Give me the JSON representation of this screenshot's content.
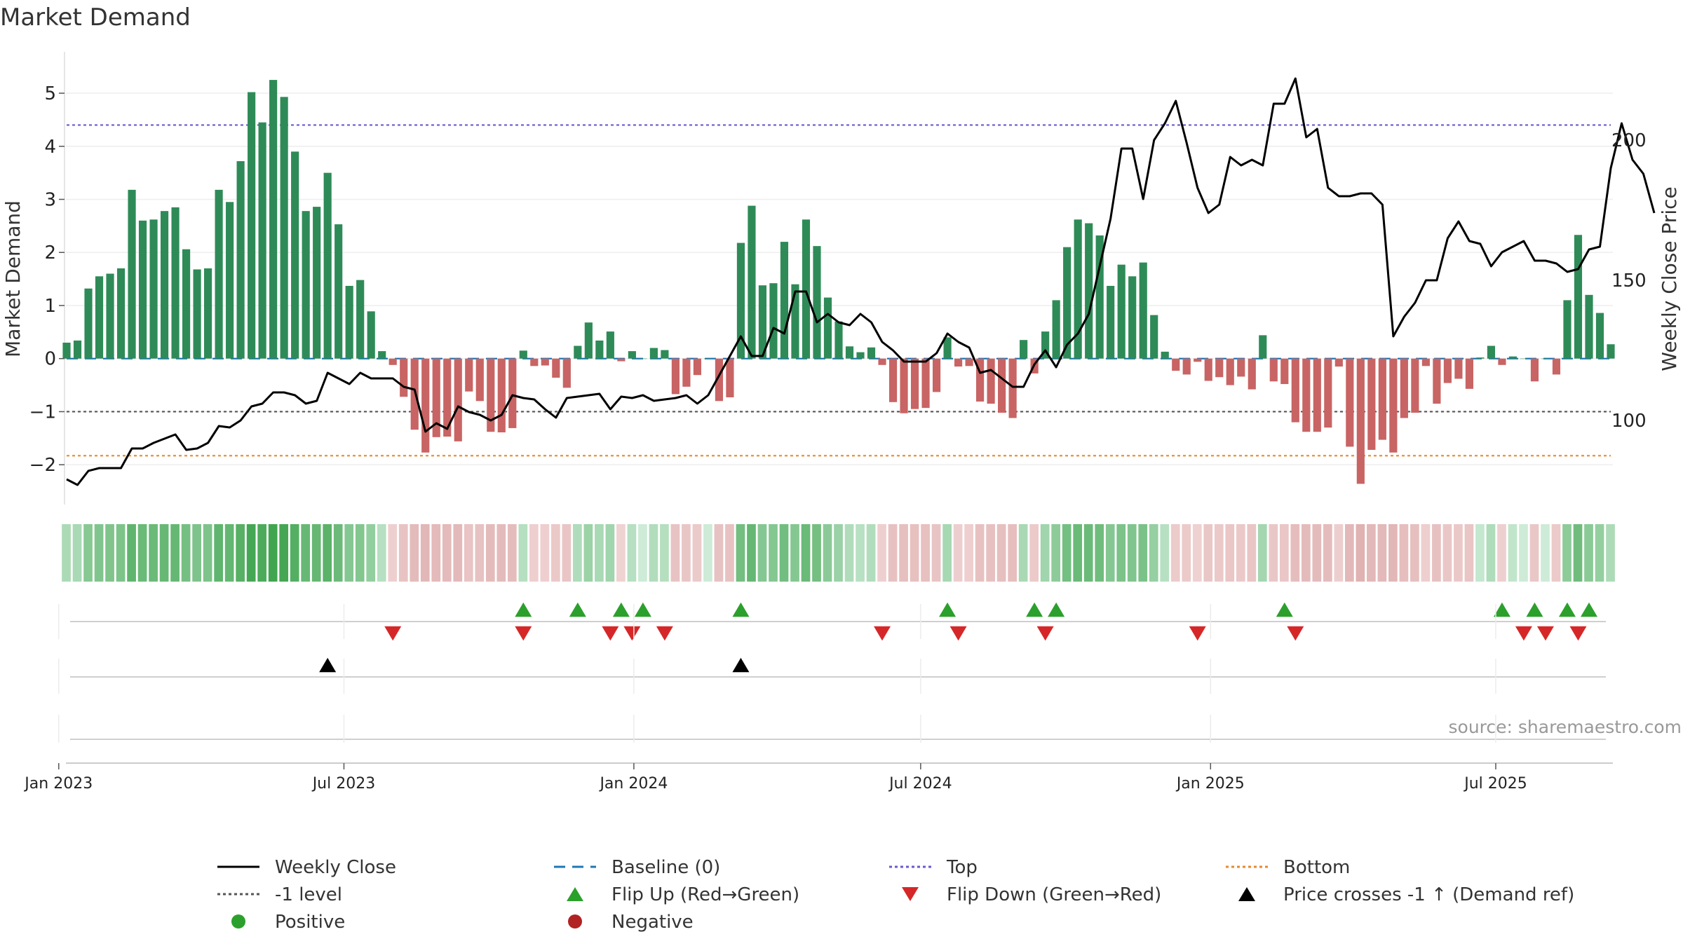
{
  "chart_data": {
    "type": "bar",
    "title": "Market Demand",
    "ylabel": "Market Demand",
    "y2label": "Weekly Close Price",
    "ylim": [
      -2.75,
      5.7
    ],
    "y2lim": [
      70,
      230
    ],
    "yticks": [
      -2,
      -1,
      0,
      1,
      2,
      3,
      4,
      5
    ],
    "y2ticks": [
      100,
      150,
      200
    ],
    "x_start": "2023-01-06",
    "x_end": "2025-09-12",
    "x_ticks": [
      {
        "date": "2023-01-01",
        "label": "Jan 2023"
      },
      {
        "date": "2023-07-01",
        "label": "Jul 2023"
      },
      {
        "date": "2024-01-01",
        "label": "Jan 2024"
      },
      {
        "date": "2024-07-01",
        "label": "Jul 2024"
      },
      {
        "date": "2025-01-01",
        "label": "Jan 2025"
      },
      {
        "date": "2025-07-01",
        "label": "Jul 2025"
      }
    ],
    "reference_lines": {
      "top": 4.4,
      "bottom": -1.83,
      "minus_one": -1,
      "baseline": 0
    },
    "demand": [
      0.3,
      0.34,
      1.32,
      1.55,
      1.6,
      1.7,
      3.18,
      2.6,
      2.62,
      2.78,
      2.85,
      2.06,
      1.68,
      1.7,
      3.18,
      2.95,
      3.72,
      5.02,
      4.45,
      5.25,
      4.93,
      3.9,
      2.78,
      2.86,
      3.5,
      2.53,
      1.37,
      1.48,
      0.89,
      0.14,
      -0.12,
      -0.72,
      -1.34,
      -1.77,
      -1.48,
      -1.47,
      -1.56,
      -0.62,
      -0.8,
      -1.38,
      -1.39,
      -1.31,
      0.15,
      -0.14,
      -0.13,
      -0.36,
      -0.55,
      0.24,
      0.68,
      0.34,
      0.51,
      -0.05,
      0.14,
      0.0,
      0.2,
      0.16,
      -0.67,
      -0.53,
      -0.31,
      0.0,
      -0.8,
      -0.73,
      2.18,
      2.88,
      1.38,
      1.42,
      2.2,
      1.4,
      2.62,
      2.12,
      1.15,
      0.7,
      0.23,
      0.12,
      0.21,
      -0.12,
      -0.82,
      -1.03,
      -0.95,
      -0.93,
      -0.63,
      0.4,
      -0.15,
      -0.14,
      -0.81,
      -0.85,
      -1.02,
      -1.12,
      0.35,
      -0.28,
      0.51,
      1.1,
      2.1,
      2.62,
      2.55,
      2.32,
      1.37,
      1.77,
      1.55,
      1.81,
      0.82,
      0.13,
      -0.23,
      -0.3,
      -0.06,
      -0.42,
      -0.35,
      -0.5,
      -0.34,
      -0.58,
      0.44,
      -0.43,
      -0.48,
      -1.2,
      -1.38,
      -1.38,
      -1.3,
      -0.15,
      -1.66,
      -2.36,
      -1.72,
      -1.53,
      -1.77,
      -1.12,
      -1.02,
      -0.14,
      -0.85,
      -0.46,
      -0.38,
      -0.57,
      0.02,
      0.24,
      -0.12,
      0.04,
      0.0,
      -0.43,
      0.0,
      -0.3,
      1.1,
      2.33,
      1.2,
      0.86,
      0.27
    ],
    "close": [
      79,
      77,
      82,
      83,
      83,
      83,
      90,
      90,
      92,
      93.5,
      95,
      89.5,
      90,
      92,
      98,
      97.5,
      100,
      105,
      106,
      110,
      110,
      109,
      106,
      107,
      117,
      115,
      113,
      117,
      115,
      115,
      115,
      112,
      111,
      96,
      99,
      97,
      105,
      103,
      102,
      100,
      102,
      109,
      108,
      107.5,
      104,
      101,
      108,
      108.5,
      109,
      109.5,
      104,
      108.5,
      108,
      109,
      107,
      107.5,
      108,
      109,
      106,
      109,
      116,
      123,
      130,
      123,
      123,
      133,
      131,
      146,
      146,
      135,
      138,
      135,
      134,
      138,
      135,
      128,
      125,
      121,
      121,
      121,
      124,
      131,
      128,
      126,
      117,
      118,
      115,
      112,
      112,
      120,
      125,
      119,
      127,
      131,
      138,
      155,
      172,
      197,
      197,
      179,
      200,
      206,
      214,
      199,
      183,
      174,
      177,
      194,
      191,
      193,
      191,
      213,
      213,
      222,
      201,
      204,
      183,
      180,
      180,
      181,
      181,
      177,
      130,
      137,
      142,
      150,
      150,
      165,
      171,
      164,
      163,
      155,
      160,
      162,
      164,
      157,
      157,
      156,
      153,
      154,
      161,
      162,
      190,
      206,
      193,
      188,
      174
    ],
    "indicator": {
      "positive_color": "#2e8b57",
      "negative_color": "#c86464",
      "source_note": "source: sharemaestro.com",
      "flip_up_weeks": [
        42,
        47,
        51,
        53,
        62,
        81,
        89,
        91,
        112,
        132,
        135,
        138,
        140
      ],
      "flip_down_weeks": [
        30,
        42,
        50,
        52,
        55,
        75,
        82,
        90,
        104,
        113,
        134,
        136,
        139
      ],
      "price_cross_weeks": [
        24,
        62
      ]
    },
    "legend": [
      {
        "label": "Weekly Close",
        "symbol": "solid-line",
        "color": "#000000"
      },
      {
        "label": "Baseline (0)",
        "symbol": "dashed-line",
        "color": "#1f77b4"
      },
      {
        "label": "Top",
        "symbol": "dotted-line",
        "color": "#6a5acd"
      },
      {
        "label": "Bottom",
        "symbol": "dotted-line",
        "color": "#e68a2e"
      },
      {
        "label": "-1 level",
        "symbol": "dotted-line",
        "color": "#555555"
      },
      {
        "label": "Flip Up (Red→Green)",
        "symbol": "triangle-up",
        "color": "#2ca02c"
      },
      {
        "label": "Flip Down (Green→Red)",
        "symbol": "triangle-down",
        "color": "#d62728"
      },
      {
        "label": "Price crosses -1 ↑ (Demand ref)",
        "symbol": "triangle-up",
        "color": "#000000"
      },
      {
        "label": "Positive",
        "symbol": "circle",
        "color": "#2ca02c"
      },
      {
        "label": "Negative",
        "symbol": "circle",
        "color": "#b22222"
      }
    ]
  }
}
